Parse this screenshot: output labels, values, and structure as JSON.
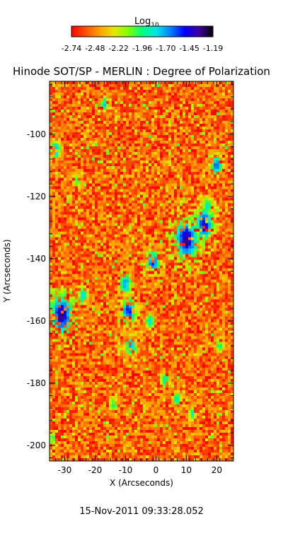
{
  "colorbar": {
    "label_main": "Log",
    "label_sub": "10",
    "ticks": [
      "-2.74",
      "-2.48",
      "-2.22",
      "-1.96",
      "-1.70",
      "-1.45",
      "-1.19"
    ],
    "range": [
      -2.74,
      -1.19
    ],
    "colors": [
      "#ff0000",
      "#ff5000",
      "#ffa000",
      "#e6e600",
      "#80ff00",
      "#00ff80",
      "#00e6e6",
      "#0080ff",
      "#0000ff",
      "#4000a0",
      "#000000"
    ]
  },
  "chart_data": {
    "type": "heatmap",
    "title": "Hinode SOT/SP - MERLIN : Degree of Polarization",
    "xlabel": "X (Arcseconds)",
    "ylabel": "Y (Arcseconds)",
    "xlim": [
      -35,
      25.5
    ],
    "ylim": [
      -205,
      -83
    ],
    "xticks": [
      -30,
      -20,
      -10,
      0,
      10,
      20
    ],
    "yticks": [
      -100,
      -120,
      -140,
      -160,
      -180,
      -200
    ],
    "grid": false,
    "features": [
      {
        "x": -31,
        "y": -158,
        "r": 2.0,
        "v": -1.3
      },
      {
        "x": 10,
        "y": -134,
        "r": 2.2,
        "v": -1.32
      },
      {
        "x": 16,
        "y": -129,
        "r": 1.8,
        "v": -1.4
      },
      {
        "x": -9,
        "y": -157,
        "r": 1.6,
        "v": -1.5
      },
      {
        "x": -1,
        "y": -141,
        "r": 1.5,
        "v": -1.55
      },
      {
        "x": -10,
        "y": -148,
        "r": 1.6,
        "v": -1.7
      },
      {
        "x": -33,
        "y": -105,
        "r": 1.2,
        "v": -1.65
      },
      {
        "x": 20,
        "y": -110,
        "r": 1.3,
        "v": -1.6
      },
      {
        "x": -8,
        "y": -168,
        "r": 1.5,
        "v": -1.7
      },
      {
        "x": -24,
        "y": -152,
        "r": 1.3,
        "v": -1.75
      },
      {
        "x": 3,
        "y": -179,
        "r": 1.4,
        "v": -1.85
      },
      {
        "x": -17,
        "y": -90,
        "r": 1.0,
        "v": -1.75
      },
      {
        "x": 12,
        "y": -190,
        "r": 1.2,
        "v": -1.9
      },
      {
        "x": -2,
        "y": -160,
        "r": 1.2,
        "v": -1.78
      },
      {
        "x": 7,
        "y": -185,
        "r": 1.3,
        "v": -1.9
      },
      {
        "x": -14,
        "y": -187,
        "r": 1.5,
        "v": -1.95
      },
      {
        "x": 17,
        "y": -123,
        "r": 1.3,
        "v": -1.8
      },
      {
        "x": -26,
        "y": -115,
        "r": 1.4,
        "v": -2.0
      },
      {
        "x": 21,
        "y": -168,
        "r": 1.6,
        "v": -2.0
      },
      {
        "x": -34,
        "y": -198,
        "r": 1.2,
        "v": -2.0
      }
    ]
  },
  "footer": {
    "timestamp": "15-Nov-2011 09:33:28.052"
  }
}
